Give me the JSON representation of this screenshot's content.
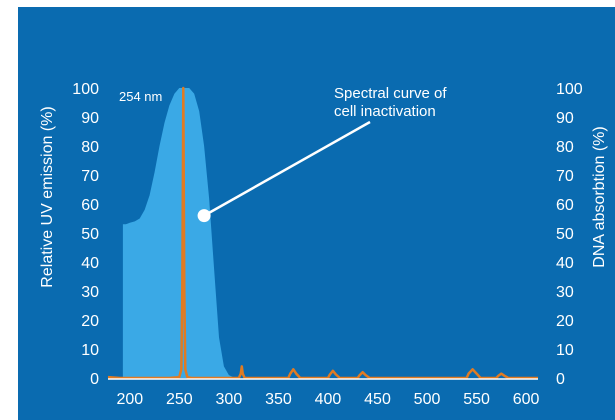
{
  "chart_data": {
    "type": "line",
    "title": "",
    "xlabel": "",
    "ylabel_left": "Relative UV emission (%)",
    "ylabel_right": "DNA absorbtion (%)",
    "xlim": [
      178,
      612
    ],
    "ylim": [
      0,
      100
    ],
    "x_ticks": [
      200,
      250,
      300,
      350,
      400,
      450,
      500,
      550,
      600
    ],
    "y_ticks_left": [
      0,
      10,
      20,
      30,
      40,
      50,
      60,
      70,
      80,
      90,
      100
    ],
    "y_ticks_right": [
      0,
      10,
      20,
      30,
      40,
      50,
      60,
      70,
      80,
      90,
      100
    ],
    "grid": false,
    "colors": {
      "background": "#0a6bb0",
      "emission": "#e07b22",
      "absorption": "#3aa9e6",
      "text": "#ffffff"
    },
    "series": [
      {
        "name": "Spectral curve of cell inactivation",
        "kind": "area",
        "axis": "right",
        "x": [
          193,
          196,
          200,
          205,
          210,
          215,
          220,
          225,
          230,
          235,
          240,
          245,
          250,
          255,
          260,
          265,
          270,
          275,
          280,
          285,
          290,
          295,
          300,
          305,
          310
        ],
        "y": [
          53,
          53,
          53.5,
          54,
          55,
          58,
          63,
          71,
          80,
          88,
          94,
          98,
          100,
          100,
          100,
          98,
          92,
          80,
          62,
          38,
          14,
          4,
          1,
          0.2,
          0
        ]
      },
      {
        "name": "",
        "kind": "line",
        "axis": "left",
        "x": [
          178,
          190,
          200,
          240,
          250,
          252,
          253,
          254,
          255,
          256,
          258,
          262,
          270,
          300,
          310,
          312,
          313,
          314,
          316,
          320,
          360,
          362,
          365,
          368,
          372,
          400,
          402,
          405,
          408,
          412,
          430,
          432,
          435,
          438,
          442,
          540,
          542,
          546,
          550,
          554,
          570,
          572,
          575,
          578,
          582,
          612
        ],
        "y": [
          0.3,
          0,
          0,
          0,
          0.3,
          3,
          30,
          100,
          30,
          3,
          0.3,
          0,
          0,
          0,
          0,
          1.5,
          4,
          1.5,
          0,
          0,
          0,
          1.5,
          3,
          1.5,
          0,
          0,
          1.2,
          2.5,
          1.2,
          0,
          0,
          1,
          2,
          1,
          0,
          0,
          1.5,
          3,
          1.5,
          0,
          0,
          0.8,
          1.5,
          0.8,
          0,
          0
        ]
      }
    ],
    "annotations": [
      {
        "text": "254 nm",
        "x": 254,
        "y": 100
      },
      {
        "text_lines": [
          "Spectral curve of",
          "cell inactivation"
        ],
        "point_x": 275,
        "point_y": 56
      }
    ]
  }
}
